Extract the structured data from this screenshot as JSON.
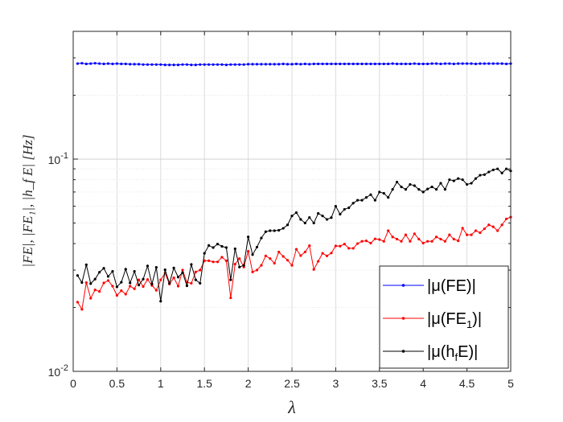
{
  "chart_data": {
    "type": "line",
    "title": "",
    "xlabel": "λ",
    "ylabel": "|FE|, |FE₁|, |h_f E| [Hz]",
    "y_scale": "log",
    "xlim": [
      0,
      5
    ],
    "ylim": [
      0.01,
      0.4
    ],
    "x_ticks": [
      0,
      0.5,
      1,
      1.5,
      2,
      2.5,
      3,
      3.5,
      4,
      4.5,
      5
    ],
    "x_tick_labels": [
      "0",
      "0.5",
      "1",
      "1.5",
      "2",
      "2.5",
      "3",
      "3.5",
      "4",
      "4.5",
      "5"
    ],
    "y_tick_labels": [
      {
        "value": 0.01,
        "base": "10",
        "exp": "-2"
      },
      {
        "value": 0.1,
        "base": "10",
        "exp": "-1"
      }
    ],
    "grid": true,
    "legend_position": "bottom-right",
    "x_step": 0.05,
    "series": [
      {
        "legend": {
          "main": "|μ(FE)|",
          "sub": ""
        },
        "color": "#0000ff",
        "values": [
          0.282,
          0.283,
          0.281,
          0.282,
          0.283,
          0.282,
          0.281,
          0.282,
          0.281,
          0.282,
          0.281,
          0.281,
          0.28,
          0.28,
          0.28,
          0.279,
          0.279,
          0.279,
          0.279,
          0.279,
          0.278,
          0.278,
          0.278,
          0.278,
          0.279,
          0.279,
          0.278,
          0.278,
          0.279,
          0.279,
          0.279,
          0.279,
          0.279,
          0.279,
          0.278,
          0.279,
          0.279,
          0.279,
          0.279,
          0.28,
          0.28,
          0.28,
          0.28,
          0.28,
          0.28,
          0.28,
          0.28,
          0.281,
          0.28,
          0.28,
          0.281,
          0.28,
          0.281,
          0.28,
          0.281,
          0.281,
          0.281,
          0.281,
          0.281,
          0.281,
          0.281,
          0.281,
          0.281,
          0.281,
          0.281,
          0.281,
          0.281,
          0.281,
          0.281,
          0.281,
          0.281,
          0.281,
          0.282,
          0.281,
          0.281,
          0.281,
          0.281,
          0.282,
          0.281,
          0.281,
          0.281,
          0.282,
          0.282,
          0.281,
          0.282,
          0.282,
          0.281,
          0.282,
          0.282,
          0.282,
          0.282,
          0.281,
          0.282,
          0.282,
          0.282,
          0.282,
          0.282,
          0.282,
          0.281,
          0.282
        ]
      },
      {
        "legend": {
          "main": "|μ(FE",
          "sub": "1",
          "tail": ")|"
        },
        "color": "#ff0000",
        "values": [
          0.0212,
          0.0196,
          0.0262,
          0.0221,
          0.0242,
          0.0238,
          0.0261,
          0.0268,
          0.0252,
          0.0228,
          0.024,
          0.0231,
          0.0252,
          0.0245,
          0.027,
          0.0251,
          0.0271,
          0.0254,
          0.0241,
          0.027,
          0.029,
          0.0258,
          0.0276,
          0.0252,
          0.03,
          0.0263,
          0.026,
          0.0294,
          0.03,
          0.0332,
          0.0332,
          0.0328,
          0.0328,
          0.0345,
          0.0332,
          0.0222,
          0.032,
          0.034,
          0.031,
          0.0368,
          0.0294,
          0.03,
          0.0316,
          0.035,
          0.034,
          0.0323,
          0.0365,
          0.0348,
          0.0334,
          0.0316,
          0.0376,
          0.0351,
          0.0365,
          0.0391,
          0.0302,
          0.033,
          0.036,
          0.035,
          0.0361,
          0.039,
          0.0389,
          0.0398,
          0.038,
          0.038,
          0.04,
          0.041,
          0.0412,
          0.0402,
          0.0421,
          0.0418,
          0.041,
          0.046,
          0.043,
          0.042,
          0.041,
          0.044,
          0.041,
          0.0445,
          0.042,
          0.0402,
          0.041,
          0.041,
          0.043,
          0.042,
          0.041,
          0.044,
          0.042,
          0.0412,
          0.0473,
          0.044,
          0.044,
          0.046,
          0.045,
          0.047,
          0.049,
          0.048,
          0.046,
          0.049,
          0.0523,
          0.0533
        ]
      },
      {
        "legend": {
          "main": "|μ(h",
          "sub": "f",
          "tail": "E)|"
        },
        "color": "#000000",
        "values": [
          0.0283,
          0.0262,
          0.0318,
          0.0259,
          0.0272,
          0.0293,
          0.0306,
          0.028,
          0.0296,
          0.025,
          0.0263,
          0.0303,
          0.0261,
          0.0296,
          0.0255,
          0.0272,
          0.0314,
          0.0258,
          0.0309,
          0.0214,
          0.0301,
          0.026,
          0.0307,
          0.0278,
          0.0292,
          0.0253,
          0.0319,
          0.027,
          0.026,
          0.036,
          0.0392,
          0.0383,
          0.0398,
          0.0388,
          0.0383,
          0.027,
          0.0378,
          0.031,
          0.0316,
          0.043,
          0.0355,
          0.0385,
          0.0425,
          0.0455,
          0.046,
          0.046,
          0.0462,
          0.0472,
          0.049,
          0.054,
          0.056,
          0.052,
          0.05,
          0.0531,
          0.05,
          0.0555,
          0.054,
          0.052,
          0.053,
          0.06,
          0.055,
          0.058,
          0.059,
          0.062,
          0.064,
          0.064,
          0.066,
          0.068,
          0.064,
          0.07,
          0.069,
          0.066,
          0.072,
          0.078,
          0.074,
          0.072,
          0.076,
          0.075,
          0.072,
          0.07,
          0.0723,
          0.074,
          0.072,
          0.077,
          0.072,
          0.08,
          0.079,
          0.081,
          0.08,
          0.076,
          0.077,
          0.081,
          0.084,
          0.0845,
          0.087,
          0.089,
          0.09,
          0.086,
          0.09,
          0.088
        ]
      }
    ]
  }
}
